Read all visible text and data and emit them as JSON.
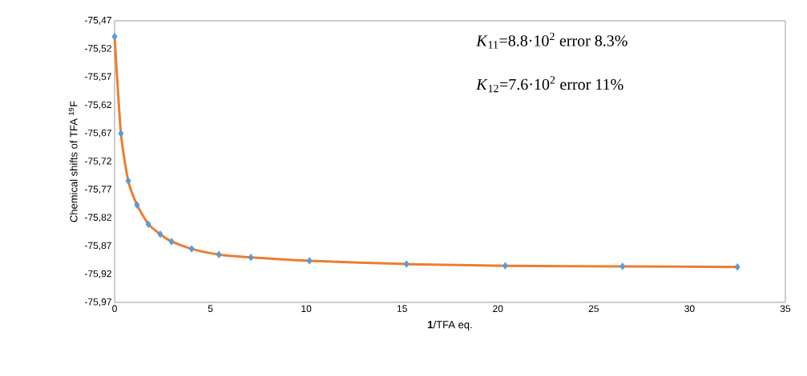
{
  "chart_data": {
    "type": "scatter",
    "xlabel": "**1**/TFA eq.",
    "ylabel": "Chemical shifts of TFA $^{19}$F",
    "x": [
      0,
      0.33,
      0.71,
      1.17,
      1.76,
      2.38,
      2.97,
      4.02,
      5.44,
      7.11,
      10.17,
      15.23,
      20.38,
      26.5,
      32.5
    ],
    "series": [
      {
        "type": "line",
        "color": "#ed7d31",
        "values": [
          -75.498,
          -75.67,
          -75.754,
          -75.797,
          -75.831,
          -75.849,
          -75.862,
          -75.875,
          -75.885,
          -75.89,
          -75.896,
          -75.902,
          -75.905,
          -75.906,
          -75.907
        ]
      },
      {
        "color": "#5b9bd5",
        "marker": "diamond",
        "values": [
          -75.498,
          -75.67,
          -75.754,
          -75.797,
          -75.831,
          -75.849,
          -75.862,
          -75.875,
          -75.885,
          -75.89,
          -75.896,
          -75.902,
          -75.905,
          -75.906,
          -75.907
        ]
      }
    ],
    "xlim": [
      0,
      35
    ],
    "xticks": [
      0,
      5,
      10,
      15,
      20,
      25,
      30,
      35
    ],
    "ylim": [
      -75.97,
      -75.47
    ],
    "yticks": [
      {
        "value": -75.97,
        "label": "-75,97"
      },
      {
        "value": -75.92,
        "label": "-75,92"
      },
      {
        "value": -75.87,
        "label": "-75,87"
      },
      {
        "value": -75.82,
        "label": "-75,82"
      },
      {
        "value": -75.77,
        "label": "-75,77"
      },
      {
        "value": -75.72,
        "label": "-75,72"
      },
      {
        "value": -75.67,
        "label": "-75,67"
      },
      {
        "value": -75.62,
        "label": "-75,62"
      },
      {
        "value": -75.57,
        "label": "-75,57"
      },
      {
        "value": -75.52,
        "label": "-75,52"
      },
      {
        "value": -75.47,
        "label": "-75,47"
      }
    ],
    "grid": false,
    "annotations": [
      "*K*$_{11}$=8.8·10$^{2}$ error 8.3%",
      "*K*$_{12}$=7.6·10$^{2}$ error 11%"
    ]
  }
}
